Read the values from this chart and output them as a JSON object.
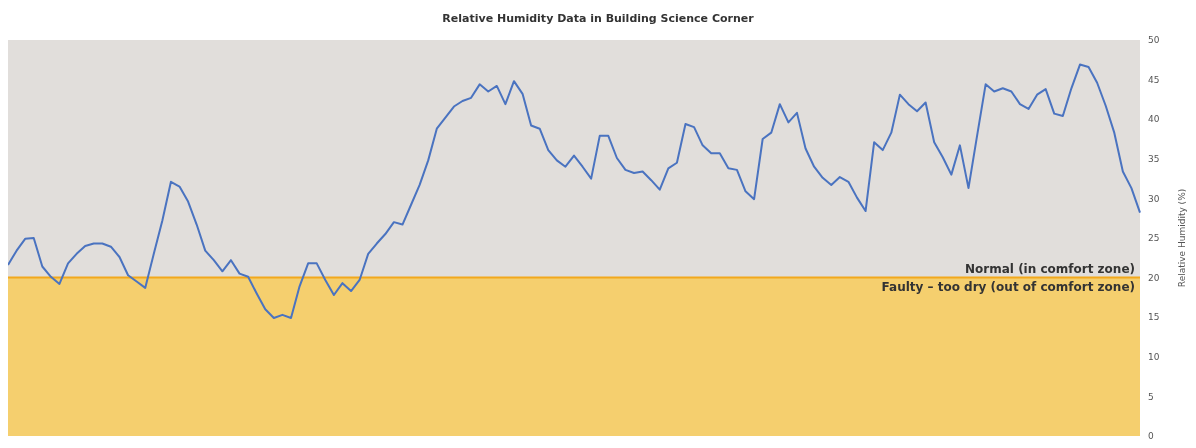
{
  "chart_data": {
    "type": "line",
    "title": "Relative Humidity Data in Building Science Corner",
    "ylabel": "Relative Humidity (%)",
    "categories": [
      null,
      null,
      null,
      null,
      null,
      null,
      null,
      null,
      null,
      null,
      null,
      null,
      null,
      null,
      null,
      null,
      null,
      null,
      null,
      null,
      null,
      null,
      null,
      null,
      null,
      null,
      null,
      null,
      null,
      null,
      null,
      null,
      null,
      null,
      null,
      null,
      null,
      null,
      null,
      null,
      null,
      null,
      null,
      null,
      null,
      null,
      null,
      null,
      null,
      null,
      null,
      null,
      null,
      null,
      null,
      null,
      null,
      null,
      null,
      null,
      null,
      null,
      null,
      null,
      null,
      null,
      null,
      null,
      null,
      null,
      null,
      null,
      null,
      null,
      null,
      null,
      null,
      null,
      null,
      null,
      null,
      null,
      null,
      null,
      null,
      null,
      null,
      null,
      null,
      null,
      null,
      null,
      null,
      null,
      null,
      null,
      null,
      null,
      null,
      null,
      null,
      null,
      null,
      null,
      null,
      null,
      null,
      null,
      null,
      null,
      null,
      null,
      null,
      null,
      null,
      null,
      null,
      null,
      null,
      null,
      null,
      null,
      null,
      null,
      null,
      null,
      null,
      null,
      null,
      null,
      null,
      null,
      null
    ],
    "series": [
      {
        "color": "#4a73c0",
        "values": [
          21.6,
          23.4,
          24.9,
          25.0,
          21.4,
          20.1,
          19.2,
          21.8,
          23.0,
          24.0,
          24.3,
          24.3,
          23.9,
          22.6,
          20.3,
          19.5,
          18.7,
          23.0,
          27.2,
          32.1,
          31.5,
          29.6,
          26.7,
          23.4,
          22.2,
          20.8,
          22.2,
          20.5,
          20.1,
          18.0,
          16.0,
          14.9,
          15.3,
          14.9,
          18.9,
          21.8,
          21.8,
          19.7,
          17.8,
          19.3,
          18.3,
          19.7,
          23.0,
          24.3,
          25.5,
          27.0,
          26.7,
          29.2,
          31.7,
          34.8,
          38.8,
          40.2,
          41.6,
          42.3,
          42.7,
          44.4,
          43.5,
          44.2,
          41.9,
          44.8,
          43.2,
          39.2,
          38.8,
          36.1,
          34.8,
          34.0,
          35.4,
          34.0,
          32.5,
          37.9,
          37.9,
          35.1,
          33.6,
          33.2,
          33.4,
          32.3,
          31.1,
          33.8,
          34.5,
          39.4,
          39.0,
          36.7,
          35.7,
          35.7,
          33.8,
          33.6,
          30.9,
          29.9,
          37.5,
          38.3,
          41.9,
          39.6,
          40.8,
          36.3,
          34.0,
          32.6,
          31.7,
          32.7,
          32.1,
          30.1,
          28.4,
          37.1,
          36.1,
          38.3,
          43.1,
          41.9,
          41.0,
          42.1,
          37.1,
          35.2,
          33.0,
          36.7,
          31.3,
          37.9,
          44.4,
          43.5,
          43.9,
          43.5,
          41.9,
          41.3,
          43.1,
          43.8,
          40.7,
          40.4,
          43.9,
          46.9,
          46.6,
          44.6,
          41.7,
          38.3,
          33.4,
          31.3,
          28.2
        ]
      }
    ],
    "ylim": [
      0,
      50
    ],
    "yticks": [
      0,
      5,
      10,
      15,
      20,
      25,
      30,
      35,
      40,
      45,
      50
    ],
    "marker": "none",
    "line_style": "solid",
    "bands": [
      {
        "axis": "y",
        "from": 0,
        "to": 20,
        "label": "Faulty – too dry (out of comfort zone)",
        "color": "#f5cf6e"
      },
      {
        "axis": "y",
        "from": 20,
        "to": 50,
        "label": "Normal (in comfort zone)",
        "color": "#e1dedb"
      }
    ],
    "ref_lines": [
      {
        "axis": "y",
        "value": 20,
        "color": "#f2a81c"
      }
    ]
  }
}
